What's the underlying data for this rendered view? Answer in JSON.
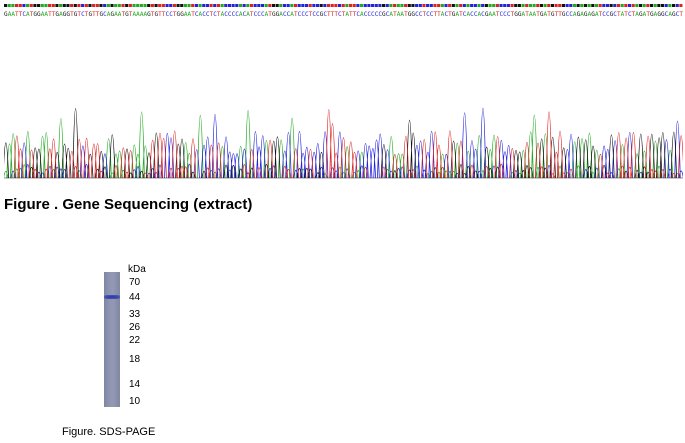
{
  "gene_sequencing": {
    "sequence": "GAATTCATGGAATTGAGGTGTCTGTTGCAGAATGTAAAAGTGTTCCTGGAATCACCTCTACCCCACATCCCATGGACCATCCCTCCGCTTTCTATTCACCCCCGCATAATGGCCTCCTTACTGATCACCACGAATCCCTGGATAATGATGTTGCCAGAGAGATCCGCTATCTAGATGAGGCAGCT",
    "caption": "Figure . Gene Sequencing (extract)",
    "base_colors": {
      "A": "#22aa22",
      "C": "#2222dd",
      "G": "#111111",
      "T": "#dd2222"
    }
  },
  "sds_page": {
    "unit_label": "kDa",
    "markers": [
      "70",
      "44",
      "33",
      "26",
      "22",
      "18",
      "14",
      "10"
    ],
    "band": "44",
    "caption": "Figure. SDS-PAGE"
  }
}
